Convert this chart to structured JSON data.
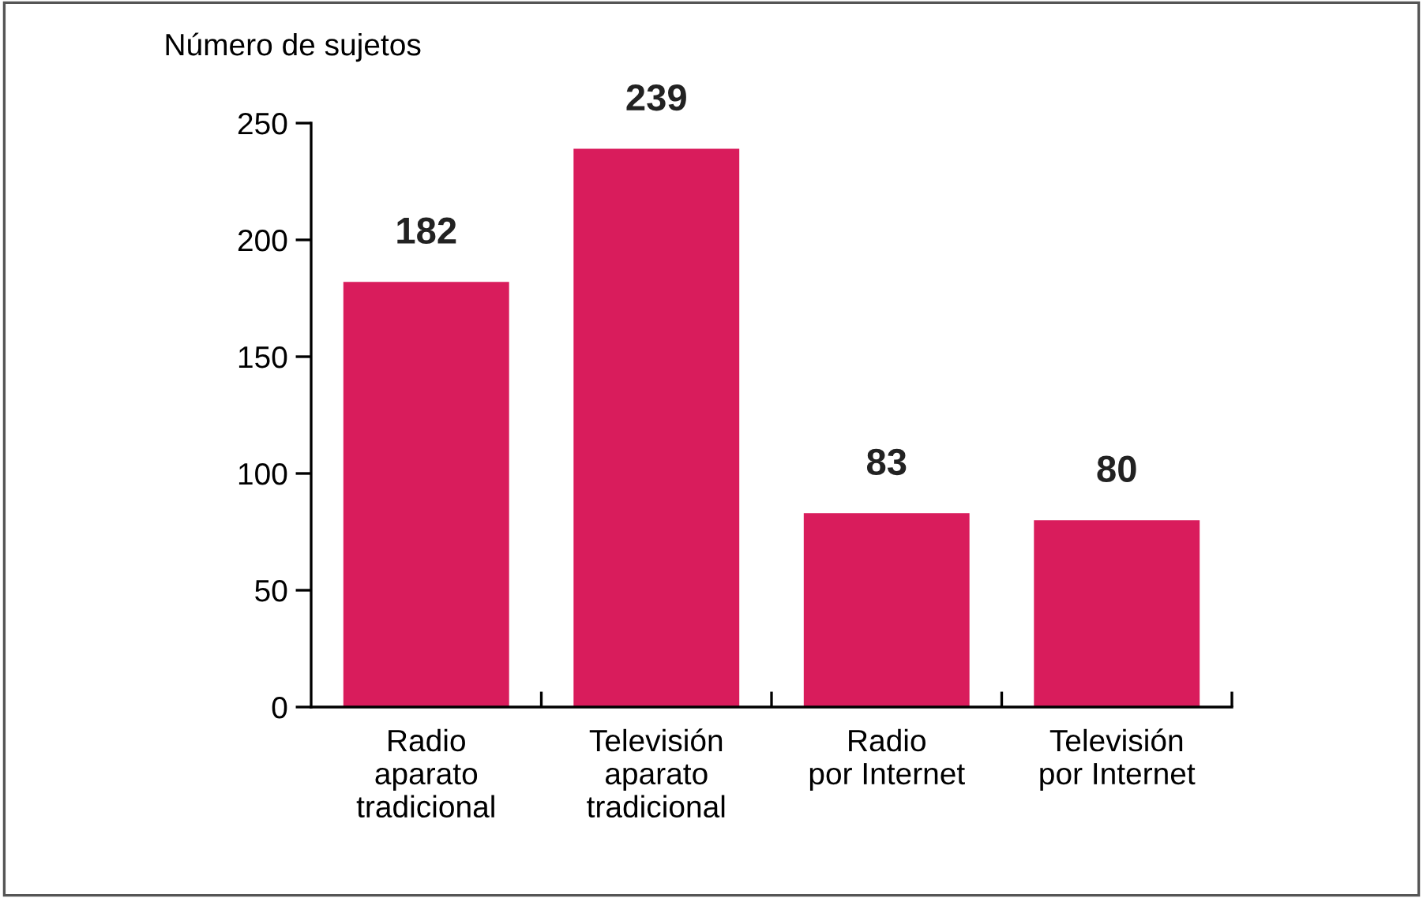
{
  "chart_data": {
    "type": "bar",
    "ylabel": "Número de sujetos",
    "categories": [
      "Radio\naparato\ntradicional",
      "Televisión\naparato\ntradicional",
      "Radio\npor Internet",
      "Televisión\npor Internet"
    ],
    "values": [
      182,
      239,
      83,
      80
    ],
    "color": "#d91c5c",
    "ylim": [
      0,
      250
    ],
    "yticks": [
      0,
      50,
      100,
      150,
      200,
      250
    ],
    "data_labels": true,
    "grid": false,
    "legend": false
  }
}
